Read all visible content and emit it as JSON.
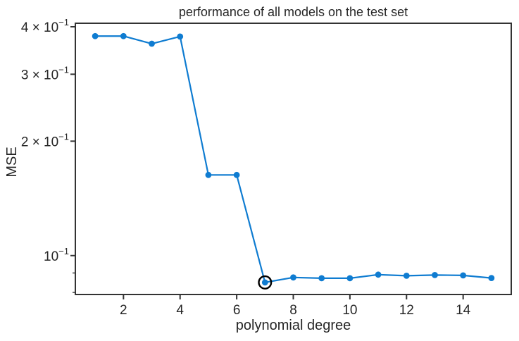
{
  "chart_data": {
    "type": "line",
    "title": "performance of all models on the test set",
    "xlabel": "polynomial degree",
    "ylabel": "MSE",
    "yscale": "log",
    "grid": false,
    "legend": "none",
    "x": [
      1,
      2,
      3,
      4,
      5,
      6,
      7,
      8,
      9,
      10,
      11,
      12,
      13,
      14,
      15
    ],
    "y": [
      0.378,
      0.378,
      0.361,
      0.377,
      0.163,
      0.163,
      0.085,
      0.0876,
      0.0872,
      0.0872,
      0.0891,
      0.0885,
      0.0889,
      0.0887,
      0.0873
    ],
    "xlim": [
      0.3,
      15.7
    ],
    "ylim": [
      0.079,
      0.4086
    ],
    "xticks": [
      2,
      4,
      6,
      8,
      10,
      12,
      14
    ],
    "yticks": [
      {
        "value": 0.4,
        "mantissa": "4 × 10",
        "exponent": "−1"
      },
      {
        "value": 0.3,
        "mantissa": "3 × 10",
        "exponent": "−1"
      },
      {
        "value": 0.2,
        "mantissa": "2 × 10",
        "exponent": "−1"
      },
      {
        "value": 0.1,
        "mantissa": "10",
        "exponent": "−1"
      }
    ],
    "yticks_minor": [
      0.09,
      0.08
    ],
    "annotation": {
      "shape": "circle",
      "x": 7,
      "y": 0.085
    },
    "colors": {
      "line": "#0f7cd1",
      "marker": "#0f7cd1",
      "annotation_ring": "#000000",
      "spine": "#333333",
      "text": "#262626"
    }
  }
}
